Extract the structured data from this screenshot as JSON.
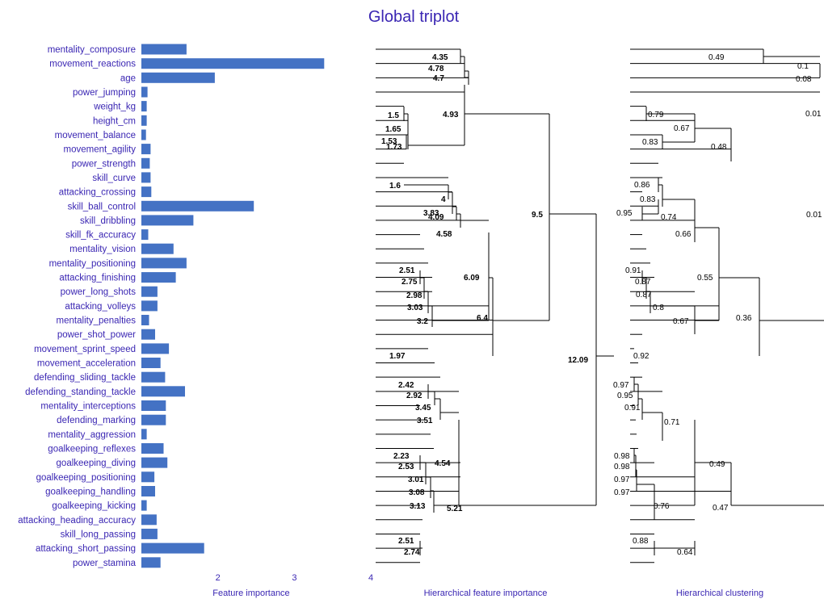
{
  "title": "Global triplot",
  "chart_data": [
    {
      "type": "bar",
      "orientation": "horizontal",
      "xlabel": "Feature importance",
      "xticks": [
        2,
        3,
        4
      ],
      "categories": [
        "mentality_composure",
        "movement_reactions",
        "age",
        "power_jumping",
        "weight_kg",
        "height_cm",
        "movement_balance",
        "movement_agility",
        "power_strength",
        "skill_curve",
        "attacking_crossing",
        "skill_ball_control",
        "skill_dribbling",
        "skill_fk_accuracy",
        "mentality_vision",
        "mentality_positioning",
        "attacking_finishing",
        "power_long_shots",
        "attacking_volleys",
        "mentality_penalties",
        "power_shot_power",
        "movement_sprint_speed",
        "movement_acceleration",
        "defending_sliding_tackle",
        "defending_standing_tackle",
        "mentality_interceptions",
        "defending_marking",
        "mentality_aggression",
        "goalkeeping_reflexes",
        "goalkeeping_diving",
        "goalkeeping_positioning",
        "goalkeeping_handling",
        "goalkeeping_kicking",
        "attacking_heading_accuracy",
        "skill_long_passing",
        "attacking_short_passing",
        "power_stamina"
      ],
      "values": [
        1.59,
        3.39,
        1.96,
        1.08,
        1.07,
        1.07,
        1.06,
        1.12,
        1.11,
        1.12,
        1.13,
        2.47,
        1.68,
        1.09,
        1.42,
        1.59,
        1.45,
        1.21,
        1.21,
        1.1,
        1.18,
        1.36,
        1.25,
        1.31,
        1.57,
        1.32,
        1.32,
        1.07,
        1.29,
        1.34,
        1.17,
        1.18,
        1.07,
        1.2,
        1.21,
        1.82,
        1.25
      ]
    },
    {
      "type": "dendrogram",
      "xlabel": "Hierarchical feature importance",
      "labels": [
        "4.35",
        "4.78",
        "4.7",
        "4.93",
        "1.5",
        "1.65",
        "1.53",
        "1.73",
        "1.6",
        "4",
        "3.83",
        "4.09",
        "4.58",
        "2.51",
        "2.75",
        "2.98",
        "3.03",
        "3.2",
        "6.09",
        "6.4",
        "1.97",
        "9.5",
        "2.42",
        "2.92",
        "3.45",
        "3.51",
        "2.23",
        "2.53",
        "3.01",
        "3.08",
        "3.13",
        "4.54",
        "5.21",
        "2.51",
        "2.74",
        "12.09"
      ]
    },
    {
      "type": "dendrogram",
      "xlabel": "Hierarchical clustering",
      "labels": [
        "0.49",
        "0.1",
        "0.08",
        "0.01",
        "0.79",
        "0.67",
        "0.83",
        "0.48",
        "0.86",
        "0.83",
        "0.95",
        "0.74",
        "0.66",
        "0.01",
        "0.91",
        "0.87",
        "0.87",
        "0.8",
        "0.67",
        "0.55",
        "0.36",
        "0.92",
        "0.97",
        "0.95",
        "0.91",
        "0.71",
        "0.98",
        "0.98",
        "0.97",
        "0.97",
        "0.49",
        "0.76",
        "0.47",
        "0.88",
        "0.64"
      ]
    }
  ]
}
